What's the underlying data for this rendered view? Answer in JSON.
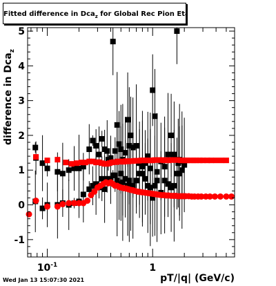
{
  "title": {
    "prefix": "Fitted difference in Dca",
    "sub": "z",
    "suffix": " for Global Rec Pion EtapT"
  },
  "datestamp": "Wed Jan 13 15:07:30 2021",
  "colors": {
    "series_black": "#000000",
    "series_red": "#ff0000",
    "axis": "#000000"
  },
  "chart_data": {
    "type": "scatter",
    "xlabel": "pT/|q| (GeV/c)",
    "ylabel_prefix": "difference in Dca",
    "ylabel_sub": "z",
    "xscale": "log",
    "xlim": [
      0.065,
      6.0
    ],
    "ylim": [
      -1.5,
      5.1
    ],
    "grid": false,
    "legend": "none",
    "x_ticks": [
      {
        "value": 0.1,
        "label": "10",
        "exp": "-1"
      },
      {
        "value": 1,
        "label": "1",
        "exp": ""
      }
    ],
    "y_ticks": [
      -1,
      0,
      1,
      2,
      3,
      4,
      5
    ],
    "series": [
      {
        "marker": "square",
        "color": "#000000",
        "x": [
          0.077,
          0.078,
          0.09,
          0.1,
          0.125,
          0.14,
          0.16,
          0.18,
          0.2,
          0.22,
          0.25,
          0.27,
          0.29,
          0.31,
          0.33,
          0.35,
          0.37,
          0.38,
          0.4,
          0.42,
          0.44,
          0.46,
          0.48,
          0.5,
          0.52,
          0.55,
          0.58,
          0.6,
          0.62,
          0.65,
          0.7,
          0.75,
          0.8,
          0.85,
          0.9,
          0.95,
          1.0,
          1.05,
          1.1,
          1.2,
          1.3,
          1.4,
          1.5,
          1.6,
          1.7,
          1.75,
          1.8,
          1.9,
          2.0,
          0.077,
          0.09,
          0.1,
          0.125,
          0.14,
          0.16,
          0.18,
          0.2,
          0.22,
          0.25,
          0.27,
          0.29,
          0.31,
          0.33,
          0.35,
          0.37,
          0.4,
          0.42,
          0.44,
          0.46,
          0.48,
          0.5,
          0.52,
          0.55,
          0.58,
          0.6,
          0.62,
          0.65,
          0.7,
          0.75,
          0.8,
          0.85,
          0.9,
          0.95,
          1.0,
          1.05,
          1.1,
          1.2,
          1.3,
          1.4,
          1.5,
          1.6,
          1.7,
          1.8,
          1.9
        ],
        "y": [
          1.65,
          1.35,
          1.2,
          1.05,
          0.95,
          0.9,
          1.0,
          1.05,
          1.05,
          1.1,
          1.6,
          1.85,
          1.7,
          1.45,
          1.9,
          1.6,
          1.55,
          1.3,
          1.35,
          4.7,
          1.55,
          2.3,
          1.75,
          1.6,
          1.3,
          1.5,
          2.45,
          1.7,
          2.0,
          1.65,
          1.7,
          1.2,
          0.9,
          1.2,
          1.4,
          1.05,
          3.3,
          2.55,
          0.95,
          1.25,
          1.1,
          1.45,
          2.0,
          1.45,
          5.0,
          1.2,
          1.3,
          1.25,
          1.15,
          0.1,
          -0.1,
          0.0,
          0.0,
          0.05,
          0.0,
          0.05,
          0.1,
          0.3,
          0.45,
          0.55,
          0.6,
          0.5,
          0.75,
          0.45,
          0.75,
          0.75,
          0.85,
          0.85,
          0.7,
          0.6,
          0.9,
          0.65,
          0.75,
          0.55,
          0.7,
          0.45,
          0.55,
          0.7,
          0.9,
          1.1,
          0.75,
          0.55,
          0.5,
          0.2,
          0.55,
          0.7,
          0.35,
          0.7,
          0.6,
          0.5,
          0.55,
          0.9,
          0.9,
          1.0
        ]
      },
      {
        "marker": "square",
        "color": "#ff0000",
        "x": [
          0.078,
          0.1,
          0.125,
          0.15,
          0.17,
          0.19,
          0.21,
          0.23,
          0.25,
          0.27,
          0.29,
          0.31,
          0.33,
          0.35,
          0.37,
          0.39,
          0.41,
          0.43,
          0.45,
          0.47,
          0.49,
          0.51,
          0.53,
          0.56,
          0.59,
          0.62,
          0.65,
          0.68,
          0.71,
          0.74,
          0.78,
          0.82,
          0.86,
          0.9,
          0.95,
          1.0,
          1.05,
          1.1,
          1.16,
          1.22,
          1.28,
          1.35,
          1.42,
          1.5,
          1.58,
          1.66,
          1.75,
          1.85,
          1.95,
          2.05,
          2.15,
          2.3,
          2.45,
          2.6,
          2.8,
          3.0,
          3.3,
          3.6,
          4.0,
          4.5,
          5.0
        ],
        "y": [
          1.38,
          1.28,
          1.3,
          1.22,
          1.18,
          1.2,
          1.22,
          1.22,
          1.25,
          1.25,
          1.22,
          1.23,
          1.2,
          1.18,
          1.18,
          1.2,
          1.22,
          1.23,
          1.23,
          1.25,
          1.24,
          1.25,
          1.24,
          1.26,
          1.25,
          1.26,
          1.26,
          1.27,
          1.27,
          1.27,
          1.28,
          1.28,
          1.28,
          1.28,
          1.28,
          1.28,
          1.29,
          1.29,
          1.29,
          1.29,
          1.28,
          1.29,
          1.28,
          1.29,
          1.29,
          1.29,
          1.29,
          1.28,
          1.28,
          1.28,
          1.28,
          1.28,
          1.28,
          1.28,
          1.28,
          1.28,
          1.28,
          1.28,
          1.28,
          1.28,
          1.28
        ]
      },
      {
        "marker": "circle",
        "color": "#ff0000",
        "x": [
          0.067,
          0.078,
          0.1,
          0.125,
          0.14,
          0.16,
          0.18,
          0.2,
          0.22,
          0.24,
          0.26,
          0.28,
          0.3,
          0.32,
          0.34,
          0.36,
          0.38,
          0.4,
          0.42,
          0.44,
          0.46,
          0.48,
          0.5,
          0.53,
          0.56,
          0.59,
          0.62,
          0.65,
          0.68,
          0.72,
          0.76,
          0.8,
          0.85,
          0.9,
          0.95,
          1.0,
          1.05,
          1.1,
          1.16,
          1.22,
          1.28,
          1.35,
          1.42,
          1.5,
          1.58,
          1.66,
          1.75,
          1.85,
          1.95,
          2.05,
          2.2,
          2.35,
          2.5,
          2.7,
          2.9,
          3.2,
          3.5,
          3.9,
          4.4,
          5.0,
          5.6
        ],
        "y": [
          -0.27,
          0.12,
          -0.05,
          -0.05,
          0.02,
          0.05,
          0.05,
          0.05,
          0.05,
          0.12,
          0.28,
          0.38,
          0.5,
          0.55,
          0.6,
          0.65,
          0.62,
          0.65,
          0.6,
          0.55,
          0.55,
          0.52,
          0.5,
          0.48,
          0.47,
          0.45,
          0.43,
          0.42,
          0.4,
          0.38,
          0.37,
          0.36,
          0.35,
          0.34,
          0.33,
          0.32,
          0.31,
          0.3,
          0.29,
          0.28,
          0.28,
          0.27,
          0.27,
          0.26,
          0.26,
          0.26,
          0.25,
          0.25,
          0.25,
          0.25,
          0.25,
          0.24,
          0.24,
          0.24,
          0.24,
          0.24,
          0.24,
          0.24,
          0.24,
          0.24,
          0.24
        ]
      }
    ]
  }
}
